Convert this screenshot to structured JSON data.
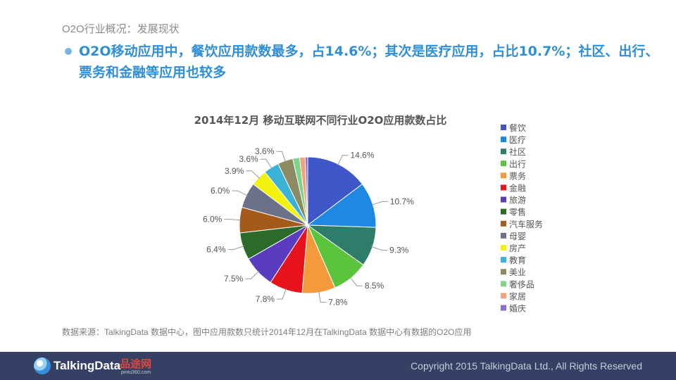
{
  "header": {
    "breadcrumb": "O2O行业概况：发展现状",
    "headline": "O2O移动应用中，餐饮应用款数最多，占14.6%；其次是医疗应用，占比10.7%；社区、出行、票务和金融等应用也较多"
  },
  "chart_data": {
    "type": "pie",
    "title": "2014年12月 移动互联网不同行业O2O应用款数占比",
    "legend_position": "right",
    "start_angle": "12 o'clock, clockwise",
    "slices": [
      {
        "label": "餐饮",
        "value": 14.6,
        "value_label": "14.6%",
        "color": "#3f56c8"
      },
      {
        "label": "医疗",
        "value": 10.7,
        "value_label": "10.7%",
        "color": "#1e88e5"
      },
      {
        "label": "社区",
        "value": 9.3,
        "value_label": "9.3%",
        "color": "#2e7d6b"
      },
      {
        "label": "出行",
        "value": 8.5,
        "value_label": "8.5%",
        "color": "#5ac43c"
      },
      {
        "label": "票务",
        "value": 7.8,
        "value_label": "7.8%",
        "color": "#f39a3c"
      },
      {
        "label": "金融",
        "value": 7.8,
        "value_label": "7.8%",
        "color": "#e8131a"
      },
      {
        "label": "旅游",
        "value": 7.5,
        "value_label": "7.5%",
        "color": "#5a3cc0"
      },
      {
        "label": "零售",
        "value": 6.4,
        "value_label": "6.4%",
        "color": "#2c6a2a"
      },
      {
        "label": "汽车服务",
        "value": 6.0,
        "value_label": "6.0%",
        "color": "#a45a1a"
      },
      {
        "label": "母婴",
        "value": 6.0,
        "value_label": "6.0%",
        "color": "#6c7088"
      },
      {
        "label": "房产",
        "value": 3.9,
        "value_label": "3.9%",
        "color": "#f2f20e"
      },
      {
        "label": "教育",
        "value": 3.6,
        "value_label": "3.6%",
        "color": "#3ab3d6"
      },
      {
        "label": "美业",
        "value": 3.6,
        "value_label": "3.6%",
        "color": "#8c8a62"
      },
      {
        "label": "奢侈品",
        "value": 1.6,
        "value_label": "",
        "color": "#7fd38a"
      },
      {
        "label": "家居",
        "value": 1.3,
        "value_label": "",
        "color": "#f2a37a"
      },
      {
        "label": "婚庆",
        "value": 0.6,
        "value_label": "",
        "color": "#8e6cd1"
      }
    ]
  },
  "source_note": "数据来源：TalkingData 数据中心，图中应用款数只统计2014年12月在TalkingData 数据中心有数据的O2O应用",
  "footer": {
    "logo_text": "TalkingData",
    "partner_logo": "品途网",
    "partner_url": "pintu360.com",
    "copyright": "Copyright 2015 TalkingData Ltd., All Rights Reserved"
  }
}
